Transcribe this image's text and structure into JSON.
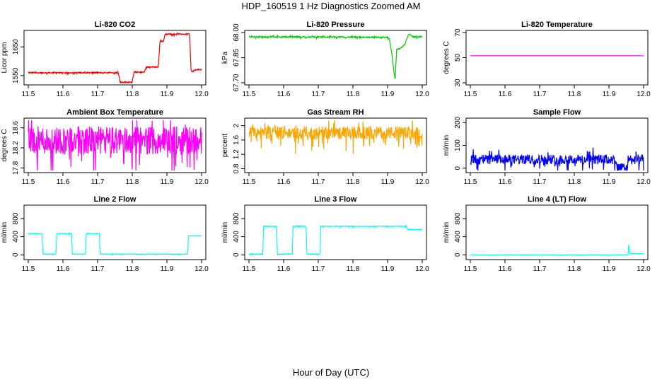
{
  "figure": {
    "title": "HDP_160519  1 Hz Diagnostics Zoomed AM",
    "xlabel": "Hour of Day (UTC)"
  },
  "chart_data": [
    {
      "type": "line",
      "title": "Li-820 CO2",
      "ylabel": "Licor ppm",
      "color": "#ff0000",
      "xlim": [
        11.5,
        12.0
      ],
      "ylim": [
        1525,
        1700
      ],
      "xticks": [
        11.5,
        11.6,
        11.7,
        11.8,
        11.9,
        12.0
      ],
      "yticks": [
        1550,
        1650
      ],
      "noise": 2,
      "points": [
        [
          11.5,
          1560
        ],
        [
          11.76,
          1560
        ],
        [
          11.765,
          1527
        ],
        [
          11.8,
          1527
        ],
        [
          11.805,
          1562
        ],
        [
          11.835,
          1562
        ],
        [
          11.84,
          1580
        ],
        [
          11.875,
          1580
        ],
        [
          11.88,
          1670
        ],
        [
          11.89,
          1670
        ],
        [
          11.895,
          1695
        ],
        [
          11.965,
          1695
        ],
        [
          11.97,
          1565
        ],
        [
          11.985,
          1570
        ],
        [
          12.0,
          1572
        ]
      ]
    },
    {
      "type": "line",
      "title": "Li-820 Pressure",
      "ylabel": "kPa",
      "color": "#00cc00",
      "xlim": [
        11.5,
        12.0
      ],
      "ylim": [
        67.7,
        68.0
      ],
      "xticks": [
        11.5,
        11.6,
        11.7,
        11.8,
        11.9,
        12.0
      ],
      "yticks": [
        67.7,
        67.85,
        68.0
      ],
      "yticklabels": [
        "67.70",
        "67.85",
        "68.00"
      ],
      "noise": 0.004,
      "points": [
        [
          11.5,
          67.975
        ],
        [
          11.9,
          67.972
        ],
        [
          11.905,
          67.96
        ],
        [
          11.912,
          67.88
        ],
        [
          11.918,
          67.77
        ],
        [
          11.922,
          67.72
        ],
        [
          11.926,
          67.9
        ],
        [
          11.932,
          67.9
        ],
        [
          11.94,
          67.91
        ],
        [
          11.95,
          67.93
        ],
        [
          11.955,
          67.96
        ],
        [
          11.962,
          67.995
        ],
        [
          11.97,
          67.975
        ],
        [
          12.0,
          67.975
        ]
      ]
    },
    {
      "type": "line",
      "title": "Li-820 Temperature",
      "ylabel": "degrees C",
      "color": "#ff00ff",
      "xlim": [
        11.5,
        12.0
      ],
      "ylim": [
        30,
        70
      ],
      "xticks": [
        11.5,
        11.6,
        11.7,
        11.8,
        11.9,
        12.0
      ],
      "yticks": [
        30,
        50,
        70
      ],
      "noise": 0,
      "points": [
        [
          11.5,
          51.5
        ],
        [
          12.0,
          51.5
        ]
      ]
    },
    {
      "type": "line",
      "title": "Ambient Box Temperature",
      "ylabel": "degrees C",
      "color": "#ff00ff",
      "xlim": [
        11.5,
        12.0
      ],
      "ylim": [
        17.75,
        18.75
      ],
      "xticks": [
        11.5,
        11.6,
        11.7,
        11.8,
        11.9,
        12.0
      ],
      "yticks": [
        17.8,
        18.2,
        18.6
      ],
      "noise": 0.28,
      "points": [
        [
          11.5,
          18.35
        ],
        [
          12.0,
          18.35
        ]
      ]
    },
    {
      "type": "line",
      "title": "Gas Stream RH",
      "ylabel": "percent",
      "color": "#ffa500",
      "xlim": [
        11.5,
        12.0
      ],
      "ylim": [
        0.75,
        2.15
      ],
      "xticks": [
        11.5,
        11.6,
        11.7,
        11.8,
        11.9,
        12.0
      ],
      "yticks": [
        0.8,
        1.2,
        1.6,
        2.0
      ],
      "noise": 0.18,
      "points": [
        [
          11.5,
          1.8
        ],
        [
          12.0,
          1.8
        ]
      ]
    },
    {
      "type": "line",
      "title": "Sample Flow",
      "ylabel": "ml/min",
      "color": "#0000ff",
      "xlim": [
        11.5,
        12.0
      ],
      "ylim": [
        -10,
        210
      ],
      "xticks": [
        11.5,
        11.6,
        11.7,
        11.8,
        11.9,
        12.0
      ],
      "yticks": [
        0,
        100,
        200
      ],
      "noise": 22,
      "points": [
        [
          11.5,
          38
        ],
        [
          11.92,
          38
        ],
        [
          11.922,
          0
        ],
        [
          11.955,
          0
        ],
        [
          11.957,
          38
        ],
        [
          12.0,
          38
        ]
      ]
    },
    {
      "type": "line",
      "title": "Line 2 Flow",
      "ylabel": "ml/min",
      "color": "#00ffff",
      "xlim": [
        11.5,
        12.0
      ],
      "ylim": [
        -60,
        1050
      ],
      "xticks": [
        11.5,
        11.6,
        11.7,
        11.8,
        11.9,
        12.0
      ],
      "yticks": [
        0,
        400,
        800
      ],
      "noise": 6,
      "points": [
        [
          11.5,
          470
        ],
        [
          11.54,
          470
        ],
        [
          11.542,
          15
        ],
        [
          11.58,
          15
        ],
        [
          11.582,
          470
        ],
        [
          11.625,
          470
        ],
        [
          11.627,
          15
        ],
        [
          11.665,
          15
        ],
        [
          11.667,
          470
        ],
        [
          11.705,
          470
        ],
        [
          11.707,
          15
        ],
        [
          11.96,
          15
        ],
        [
          11.962,
          420
        ],
        [
          12.0,
          420
        ]
      ]
    },
    {
      "type": "line",
      "title": "Line 3 Flow",
      "ylabel": "ml/min",
      "color": "#00ffff",
      "xlim": [
        11.5,
        12.0
      ],
      "ylim": [
        -60,
        1050
      ],
      "xticks": [
        11.5,
        11.6,
        11.7,
        11.8,
        11.9,
        12.0
      ],
      "yticks": [
        0,
        400,
        800
      ],
      "noise": 8,
      "points": [
        [
          11.5,
          15
        ],
        [
          11.54,
          15
        ],
        [
          11.542,
          630
        ],
        [
          11.58,
          630
        ],
        [
          11.582,
          15
        ],
        [
          11.625,
          15
        ],
        [
          11.627,
          630
        ],
        [
          11.665,
          630
        ],
        [
          11.667,
          15
        ],
        [
          11.705,
          15
        ],
        [
          11.707,
          630
        ],
        [
          11.955,
          630
        ],
        [
          11.957,
          560
        ],
        [
          12.0,
          560
        ]
      ]
    },
    {
      "type": "line",
      "title": "Line 4 (LT) Flow",
      "ylabel": "ml/min",
      "color": "#00ffff",
      "xlim": [
        11.5,
        12.0
      ],
      "ylim": [
        -60,
        1050
      ],
      "xticks": [
        11.5,
        11.6,
        11.7,
        11.8,
        11.9,
        12.0
      ],
      "yticks": [
        0,
        400,
        800
      ],
      "noise": 2,
      "points": [
        [
          11.5,
          0
        ],
        [
          11.955,
          0
        ],
        [
          11.957,
          240
        ],
        [
          11.96,
          30
        ],
        [
          12.0,
          30
        ]
      ]
    }
  ]
}
